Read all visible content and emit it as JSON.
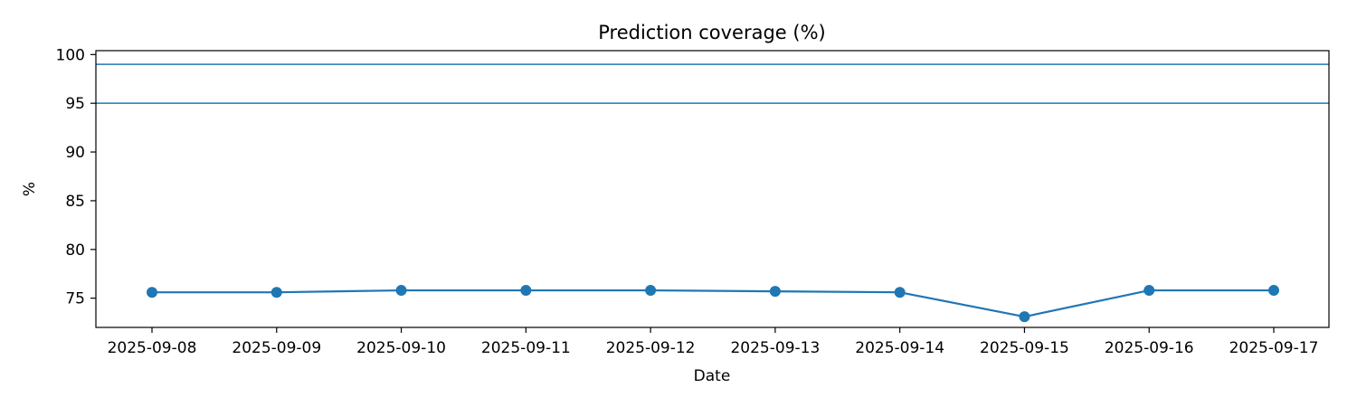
{
  "chart_data": {
    "type": "line",
    "title": "Prediction coverage (%)",
    "xlabel": "Date",
    "ylabel": "%",
    "x": [
      "2025-09-08",
      "2025-09-09",
      "2025-09-10",
      "2025-09-11",
      "2025-09-12",
      "2025-09-13",
      "2025-09-14",
      "2025-09-15",
      "2025-09-16",
      "2025-09-17"
    ],
    "series": [
      {
        "values": [
          75.6,
          75.6,
          75.8,
          75.8,
          75.8,
          75.7,
          75.6,
          73.1,
          75.8,
          75.8
        ],
        "color": "#1f77b4"
      }
    ],
    "reference_lines": [
      {
        "y": 99,
        "color": "#1f77b4"
      },
      {
        "y": 95,
        "color": "#1f77b4"
      }
    ],
    "yticks": [
      75,
      80,
      85,
      90,
      95,
      100
    ],
    "ylim": [
      72,
      100.4
    ],
    "grid": false,
    "legend": false
  }
}
